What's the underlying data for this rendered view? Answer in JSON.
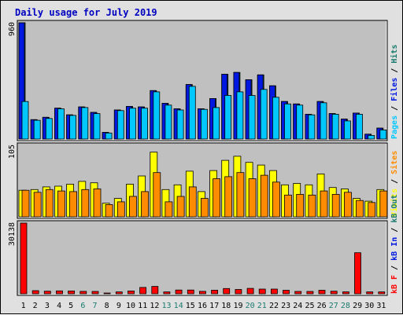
{
  "chart_data": {
    "type": "bar",
    "title": "Daily usage for July 2019",
    "categories": [
      "1",
      "2",
      "3",
      "4",
      "5",
      "6",
      "7",
      "8",
      "9",
      "10",
      "11",
      "12",
      "13",
      "14",
      "15",
      "16",
      "17",
      "18",
      "19",
      "20",
      "21",
      "22",
      "23",
      "24",
      "25",
      "26",
      "27",
      "28",
      "29",
      "30",
      "31"
    ],
    "weekend_days": [
      "6",
      "7",
      "13",
      "14",
      "20",
      "21",
      "27",
      "28"
    ],
    "panels": [
      {
        "id": "top",
        "max_label": "960",
        "ymax": 960,
        "legend": [
          "Pages",
          "Files",
          "Hits"
        ],
        "series": [
          {
            "name": "Hits",
            "color": "#1a7a6e",
            "values": [
              960,
              160,
              180,
              255,
              200,
              265,
              220,
              55,
              240,
              270,
              265,
              400,
              295,
              250,
              450,
              250,
              335,
              535,
              550,
              490,
              530,
              440,
              310,
              290,
              205,
              310,
              210,
              165,
              215,
              40,
              90
            ]
          },
          {
            "name": "Files",
            "color": "#0018e0",
            "values": [
              960,
              160,
              180,
              255,
              200,
              265,
              220,
              55,
              240,
              270,
              265,
              400,
              295,
              250,
              450,
              250,
              335,
              535,
              550,
              490,
              530,
              440,
              310,
              290,
              205,
              310,
              210,
              165,
              215,
              40,
              90
            ]
          },
          {
            "name": "Pages",
            "color": "#00c8ff",
            "values": [
              310,
              155,
              170,
              250,
              195,
              260,
              210,
              50,
              235,
              255,
              255,
              390,
              280,
              240,
              435,
              245,
              260,
              360,
              390,
              360,
              410,
              345,
              290,
              280,
              200,
              300,
              205,
              150,
              205,
              30,
              75
            ]
          }
        ]
      },
      {
        "id": "middle",
        "max_label": "105",
        "ymax": 105,
        "legend": [
          "Visits",
          "Sites"
        ],
        "series": [
          {
            "name": "Visits",
            "color": "#ffff00",
            "values": [
              39,
              40,
              44,
              45,
              48,
              52,
              50,
              20,
              27,
              48,
              60,
              95,
              40,
              47,
              67,
              37,
              68,
              83,
              89,
              80,
              76,
              68,
              47,
              49,
              47,
              63,
              43,
              41,
              27,
              23,
              40
            ]
          },
          {
            "name": "Sites",
            "color": "#ff8c00",
            "values": [
              39,
              36,
              40,
              38,
              37,
              40,
              41,
              18,
              22,
              30,
              37,
              65,
              22,
              30,
              44,
              27,
              56,
              59,
              65,
              56,
              61,
              51,
              32,
              33,
              32,
              38,
              33,
              36,
              24,
              21,
              38
            ]
          }
        ]
      },
      {
        "id": "bottom",
        "max_label": "30138",
        "ymax": 30138,
        "legend": [
          "kB F",
          "kB In",
          "kB Out"
        ],
        "series": [
          {
            "name": "kB F",
            "color": "#ff0000",
            "values": [
              30138,
              1350,
              1100,
              1250,
              1200,
              1050,
              1000,
              150,
              800,
              1200,
              2700,
              3150,
              800,
              1600,
              1600,
              1050,
              1550,
              2250,
              1850,
              2300,
              2000,
              2000,
              1500,
              1000,
              1000,
              1500,
              1100,
              850,
              17500,
              800,
              800
            ]
          }
        ]
      }
    ]
  },
  "colors": {
    "frame_bg": "#e0e0e0",
    "plot_bg": "#c0c0c0",
    "title": "#0000c0",
    "legend_pages": "#00c8ff",
    "legend_files": "#0018e0",
    "legend_hits": "#1a7a6e",
    "legend_visits": "#ffff00",
    "legend_sites": "#ff8c00",
    "legend_kbf": "#ff0000",
    "legend_kbin": "#0018e0",
    "legend_kbout": "#1a7a6e",
    "weekday_label": "#000000",
    "weekend_label": "#1a7a6e"
  }
}
